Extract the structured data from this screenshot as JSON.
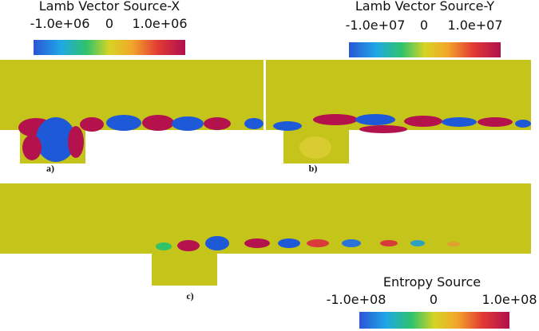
{
  "panels": [
    {
      "title": "Lamb Vector Source-X",
      "ticks": [
        "-1.0e+06",
        "0",
        "1.0e+06"
      ],
      "label": "a)"
    },
    {
      "title": "Lamb Vector Source-Y",
      "ticks": [
        "-1.0e+07",
        "0",
        "1.0e+07"
      ],
      "label": "b)"
    },
    {
      "title": "Entropy Source",
      "ticks": [
        "-1.0e+08",
        "0",
        "1.0e+08"
      ],
      "label": "c)"
    }
  ]
}
